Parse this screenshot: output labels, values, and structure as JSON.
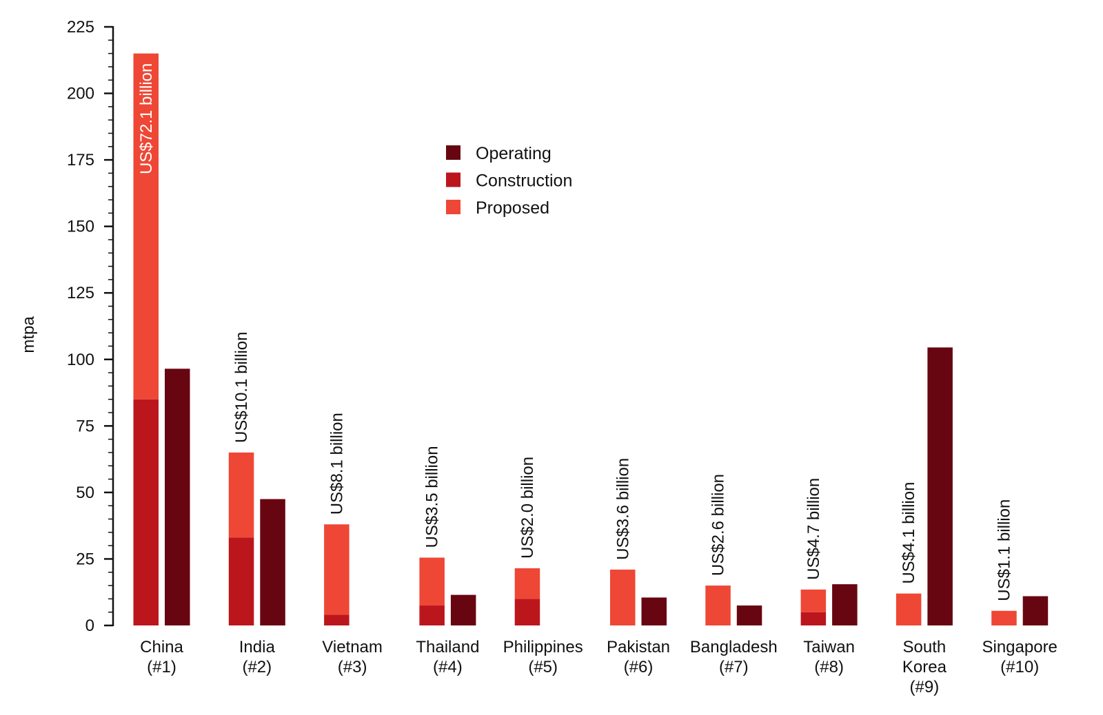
{
  "colors": {
    "operating": "#670611",
    "construction": "#bc161d",
    "proposed": "#ef4735",
    "axis": "#111111",
    "label_inside": "#ffffff",
    "label_outside": "#111111"
  },
  "chart_data": {
    "type": "bar",
    "title": "",
    "xlabel": "",
    "ylabel": "mtpa",
    "ylim": [
      0,
      225
    ],
    "yticks": [
      0,
      25,
      50,
      75,
      100,
      125,
      150,
      175,
      200,
      225
    ],
    "grid": false,
    "legend_position": "top-center",
    "categories": [
      [
        "China",
        "(#1)"
      ],
      [
        "India",
        "(#2)"
      ],
      [
        "Vietnam",
        "(#3)"
      ],
      [
        "Thailand",
        "(#4)"
      ],
      [
        "Philippines",
        "(#5)"
      ],
      [
        "Pakistan",
        "(#6)"
      ],
      [
        "Bangladesh",
        "(#7)"
      ],
      [
        "Taiwan",
        "(#8)"
      ],
      [
        "South",
        "Korea",
        "(#9)"
      ],
      [
        "Singapore",
        "(#10)"
      ]
    ],
    "series": [
      {
        "name": "Operating",
        "key": "operating",
        "values": [
          96.5,
          47.5,
          0,
          11.5,
          0,
          10.5,
          7.5,
          15.5,
          104.5,
          11
        ]
      },
      {
        "name": "Construction",
        "key": "construction",
        "values": [
          85,
          33,
          4,
          7.5,
          10,
          0,
          0,
          5,
          0,
          0
        ]
      },
      {
        "name": "Proposed",
        "key": "proposed",
        "values": [
          130,
          32,
          34,
          18,
          11.5,
          21,
          15,
          8.5,
          12,
          5.5
        ]
      }
    ],
    "legend_order": [
      "Operating",
      "Construction",
      "Proposed"
    ],
    "annotations": [
      {
        "category": "China",
        "text": "US$72.1 billion",
        "inside": true
      },
      {
        "category": "India",
        "text": "US$10.1 billion",
        "inside": false
      },
      {
        "category": "Vietnam",
        "text": "US$8.1 billion",
        "inside": false
      },
      {
        "category": "Thailand",
        "text": "US$3.5 billion",
        "inside": false
      },
      {
        "category": "Philippines",
        "text": "US$2.0 billion",
        "inside": false
      },
      {
        "category": "Pakistan",
        "text": "US$3.6 billion",
        "inside": false
      },
      {
        "category": "Bangladesh",
        "text": "US$2.6 billion",
        "inside": false
      },
      {
        "category": "Taiwan",
        "text": "US$4.7 billion",
        "inside": false
      },
      {
        "category": "South Korea",
        "text": "US$4.1 billion",
        "inside": false
      },
      {
        "category": "Singapore",
        "text": "US$1.1 billion",
        "inside": false
      }
    ]
  }
}
